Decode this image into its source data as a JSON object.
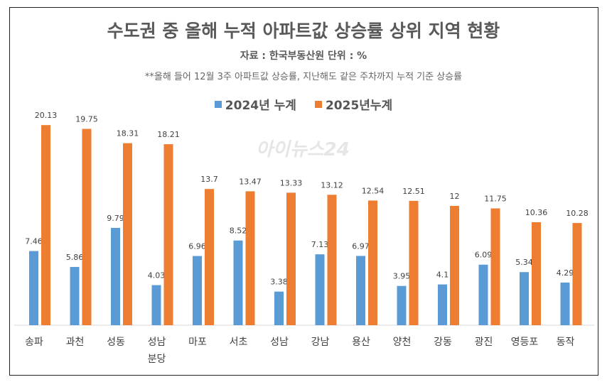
{
  "chart_data": {
    "type": "bar",
    "title": "수도권 중 올해 누적 아파트값 상승률 상위 지역 현황",
    "subtitle": "자료 : 한국부동산원  단위 : %",
    "note": "**올해 들어 12월 3주 아파트값  상승률, 지난해도 같은 주차까지 누적 기준 상승률",
    "categories": [
      "송파",
      "과천",
      "성동",
      "성남\n분당",
      "마포",
      "서초",
      "성남",
      "강남",
      "용산",
      "양천",
      "강동",
      "광진",
      "영등포",
      "동작"
    ],
    "series": [
      {
        "name": "2024년 누계",
        "color": "#5B9BD5",
        "values": [
          7.46,
          5.86,
          9.79,
          4.03,
          6.96,
          8.52,
          3.38,
          7.13,
          6.97,
          3.95,
          4.1,
          6.09,
          5.34,
          4.29
        ],
        "labels": [
          "7.46",
          "5.86",
          "9.79",
          "4.03",
          "6.96",
          "8.52",
          "3.38",
          "7.13",
          "6.97",
          "3.95",
          "4.1",
          "6.09",
          "5.34",
          "4.29"
        ]
      },
      {
        "name": "2025년누계",
        "color": "#ED7D31",
        "values": [
          20.13,
          19.75,
          18.31,
          18.21,
          13.7,
          13.47,
          13.33,
          13.12,
          12.54,
          12.51,
          12,
          11.75,
          10.36,
          10.28
        ],
        "labels": [
          "20.13",
          "19.75",
          "18.31",
          "18.21",
          "13.7",
          "13.47",
          "13.33",
          "13.12",
          "12.54",
          "12.51",
          "12",
          "11.75",
          "10.36",
          "10.28"
        ]
      }
    ],
    "ylim": [
      0,
      22
    ],
    "grid": false,
    "legend": "top-center"
  },
  "watermark": "아이뉴스24"
}
